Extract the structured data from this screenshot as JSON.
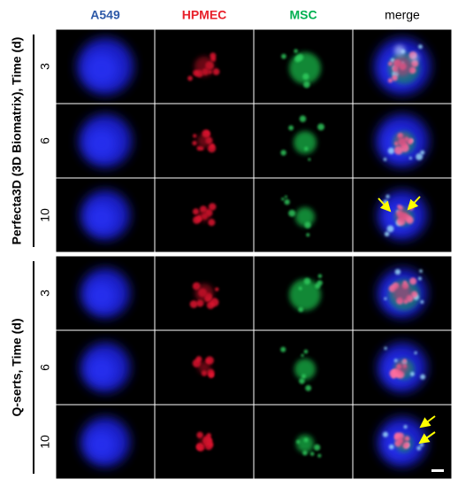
{
  "columns": [
    "A549",
    "HPMEC",
    "MSC",
    "merge"
  ],
  "groups": [
    {
      "label": "Perfecta3D (3D Biomatrix), Time (d)",
      "rows": [
        "3",
        "6",
        "10"
      ]
    },
    {
      "label": "Q-serts, Time (d)",
      "rows": [
        "3",
        "6",
        "10"
      ]
    }
  ]
}
